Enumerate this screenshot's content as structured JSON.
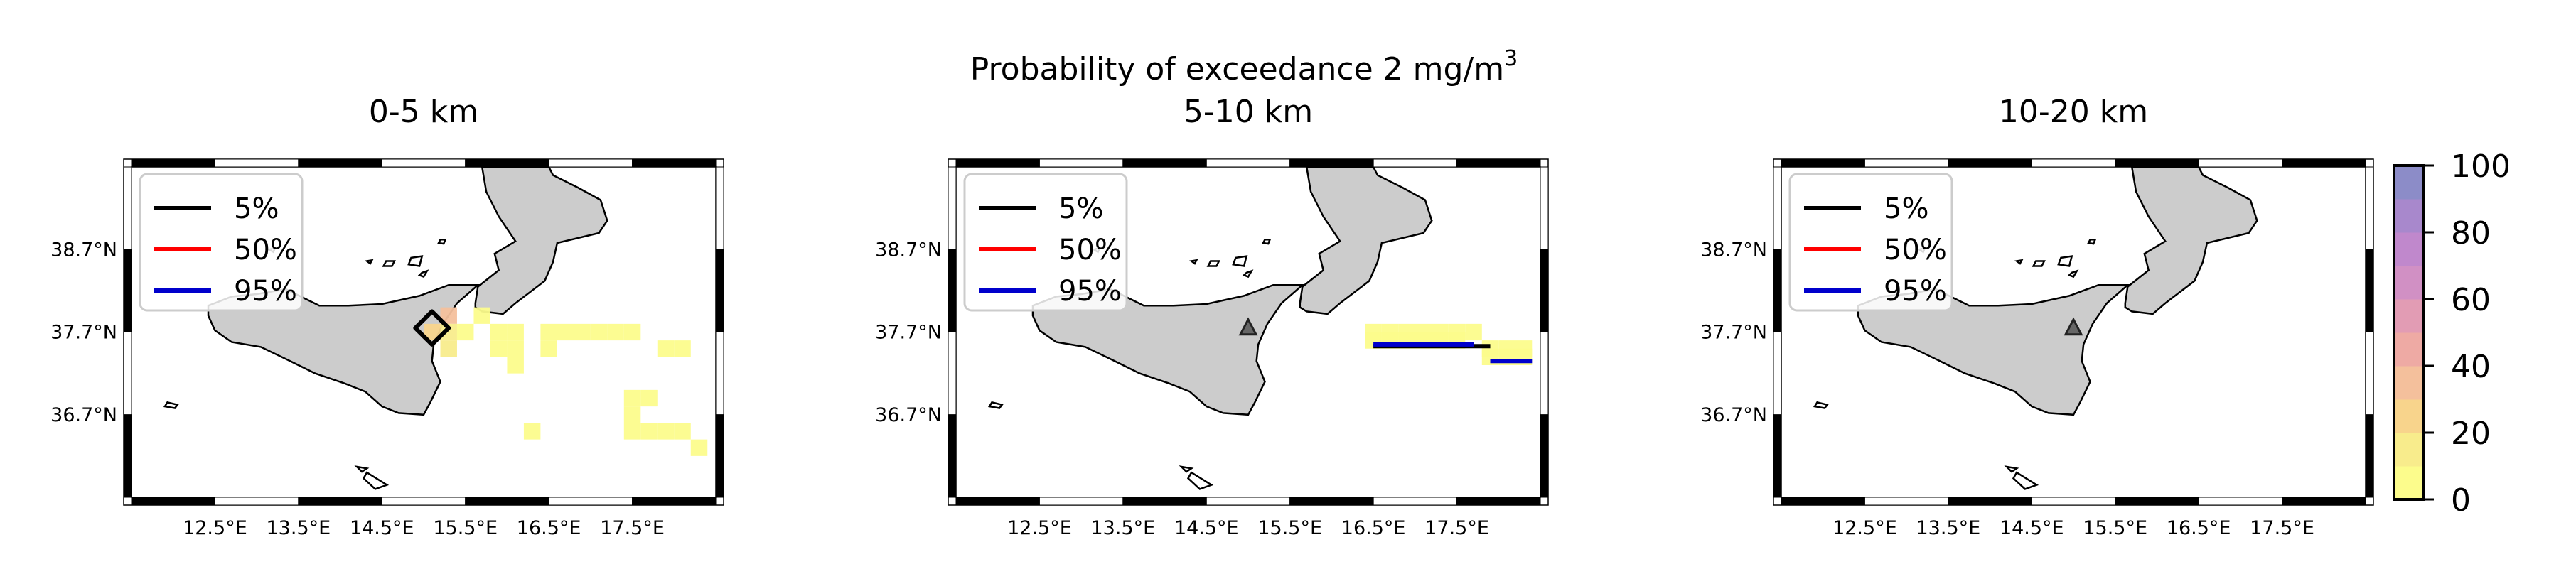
{
  "figure": {
    "suptitle_main": "Probability of exceedance 2 mg/m",
    "suptitle_sup": "3"
  },
  "chart_data": [
    {
      "type": "heatmap",
      "title": "0-5 km",
      "xlabel": "",
      "ylabel": "",
      "xlim": [
        11.5,
        18.5
      ],
      "ylim": [
        35.7,
        39.7
      ],
      "x_ticks": [
        "12.5°E",
        "13.5°E",
        "14.5°E",
        "15.5°E",
        "16.5°E",
        "17.5°E"
      ],
      "x_tick_values": [
        12.5,
        13.5,
        14.5,
        15.5,
        16.5,
        17.5
      ],
      "y_ticks": [
        "38.7°N",
        "37.7°N",
        "36.7°N"
      ],
      "y_tick_values": [
        38.7,
        37.7,
        36.7
      ],
      "legend": {
        "position": "top-left",
        "entries": [
          "5%",
          "50%",
          "95%"
        ]
      },
      "cells_pct": [
        {
          "lon": 15.3,
          "lat": 37.9,
          "p": 30
        },
        {
          "lon": 15.1,
          "lat": 37.7,
          "p": 25
        },
        {
          "lon": 15.3,
          "lat": 37.7,
          "p": 15
        },
        {
          "lon": 15.5,
          "lat": 37.7,
          "p": 8
        },
        {
          "lon": 15.3,
          "lat": 37.5,
          "p": 10
        },
        {
          "lon": 15.7,
          "lat": 37.9,
          "p": 3
        },
        {
          "lon": 15.9,
          "lat": 37.7,
          "p": 3
        },
        {
          "lon": 16.1,
          "lat": 37.7,
          "p": 3
        },
        {
          "lon": 16.5,
          "lat": 37.7,
          "p": 3
        },
        {
          "lon": 16.7,
          "lat": 37.7,
          "p": 3
        },
        {
          "lon": 16.9,
          "lat": 37.7,
          "p": 3
        },
        {
          "lon": 17.1,
          "lat": 37.7,
          "p": 3
        },
        {
          "lon": 17.3,
          "lat": 37.7,
          "p": 3
        },
        {
          "lon": 17.5,
          "lat": 37.7,
          "p": 3
        },
        {
          "lon": 15.9,
          "lat": 37.5,
          "p": 3
        },
        {
          "lon": 16.1,
          "lat": 37.5,
          "p": 3
        },
        {
          "lon": 16.5,
          "lat": 37.5,
          "p": 3
        },
        {
          "lon": 17.9,
          "lat": 37.5,
          "p": 3
        },
        {
          "lon": 18.1,
          "lat": 37.5,
          "p": 3
        },
        {
          "lon": 16.1,
          "lat": 37.3,
          "p": 3
        },
        {
          "lon": 17.5,
          "lat": 36.9,
          "p": 3
        },
        {
          "lon": 17.7,
          "lat": 36.9,
          "p": 3
        },
        {
          "lon": 17.5,
          "lat": 36.7,
          "p": 3
        },
        {
          "lon": 16.3,
          "lat": 36.5,
          "p": 3
        },
        {
          "lon": 17.5,
          "lat": 36.5,
          "p": 3
        },
        {
          "lon": 17.7,
          "lat": 36.5,
          "p": 3
        },
        {
          "lon": 17.9,
          "lat": 36.5,
          "p": 3
        },
        {
          "lon": 18.1,
          "lat": 36.5,
          "p": 3
        },
        {
          "lon": 18.3,
          "lat": 36.3,
          "p": 3
        }
      ],
      "contours": [
        {
          "level": "5%",
          "color": "#000000",
          "path": [
            [
              15.1,
              37.95
            ],
            [
              15.3,
              37.75
            ],
            [
              15.1,
              37.55
            ],
            [
              14.9,
              37.75
            ]
          ]
        }
      ],
      "volcano": null
    },
    {
      "type": "heatmap",
      "title": "5-10 km",
      "xlabel": "",
      "ylabel": "",
      "xlim": [
        11.5,
        18.5
      ],
      "ylim": [
        35.7,
        39.7
      ],
      "x_ticks": [
        "12.5°E",
        "13.5°E",
        "14.5°E",
        "15.5°E",
        "16.5°E",
        "17.5°E"
      ],
      "x_tick_values": [
        12.5,
        13.5,
        14.5,
        15.5,
        16.5,
        17.5
      ],
      "y_ticks": [
        "38.7°N",
        "37.7°N",
        "36.7°N"
      ],
      "y_tick_values": [
        38.7,
        37.7,
        36.7
      ],
      "legend": {
        "position": "top-left",
        "entries": [
          "5%",
          "50%",
          "95%"
        ]
      },
      "cells_pct": [
        {
          "lon": 16.5,
          "lat": 37.7,
          "p": 3
        },
        {
          "lon": 16.7,
          "lat": 37.7,
          "p": 3
        },
        {
          "lon": 16.9,
          "lat": 37.7,
          "p": 3
        },
        {
          "lon": 17.1,
          "lat": 37.7,
          "p": 3
        },
        {
          "lon": 17.3,
          "lat": 37.7,
          "p": 3
        },
        {
          "lon": 17.5,
          "lat": 37.7,
          "p": 3
        },
        {
          "lon": 17.7,
          "lat": 37.7,
          "p": 3
        },
        {
          "lon": 16.5,
          "lat": 37.6,
          "p": 3
        },
        {
          "lon": 16.7,
          "lat": 37.6,
          "p": 3
        },
        {
          "lon": 16.9,
          "lat": 37.6,
          "p": 3
        },
        {
          "lon": 17.1,
          "lat": 37.6,
          "p": 3
        },
        {
          "lon": 17.3,
          "lat": 37.6,
          "p": 3
        },
        {
          "lon": 17.5,
          "lat": 37.6,
          "p": 3
        },
        {
          "lon": 17.9,
          "lat": 37.5,
          "p": 3
        },
        {
          "lon": 18.1,
          "lat": 37.5,
          "p": 3
        },
        {
          "lon": 18.3,
          "lat": 37.5,
          "p": 3
        },
        {
          "lon": 17.9,
          "lat": 37.4,
          "p": 3
        },
        {
          "lon": 18.1,
          "lat": 37.4,
          "p": 3
        },
        {
          "lon": 18.3,
          "lat": 37.4,
          "p": 3
        }
      ],
      "contours": [
        {
          "level": "5%",
          "color": "#000000",
          "path": [
            [
              16.5,
              37.53
            ],
            [
              17.9,
              37.53
            ]
          ]
        },
        {
          "level": "95%",
          "color": "#0000cc",
          "path": [
            [
              16.5,
              37.55
            ],
            [
              17.7,
              37.55
            ]
          ]
        },
        {
          "level": "95%",
          "color": "#0000cc",
          "path": [
            [
              17.9,
              37.35
            ],
            [
              18.4,
              37.35
            ]
          ]
        }
      ],
      "volcano": {
        "lon": 15.0,
        "lat": 37.75
      }
    },
    {
      "type": "heatmap",
      "title": "10-20 km",
      "xlabel": "",
      "ylabel": "",
      "xlim": [
        11.5,
        18.5
      ],
      "ylim": [
        35.7,
        39.7
      ],
      "x_ticks": [
        "12.5°E",
        "13.5°E",
        "14.5°E",
        "15.5°E",
        "16.5°E",
        "17.5°E"
      ],
      "x_tick_values": [
        12.5,
        13.5,
        14.5,
        15.5,
        16.5,
        17.5
      ],
      "y_ticks": [
        "38.7°N",
        "37.7°N",
        "36.7°N"
      ],
      "y_tick_values": [
        38.7,
        37.7,
        36.7
      ],
      "legend": {
        "position": "top-left",
        "entries": [
          "5%",
          "50%",
          "95%"
        ]
      },
      "cells_pct": [],
      "contours": [],
      "volcano": {
        "lon": 15.0,
        "lat": 37.75
      }
    }
  ],
  "colorbar": {
    "range": [
      0,
      100
    ],
    "ticks": [
      "0",
      "20",
      "40",
      "60",
      "80",
      "100"
    ],
    "tick_values": [
      0,
      20,
      40,
      60,
      80,
      100
    ],
    "colors": [
      "#fcfc8c",
      "#f8ec8c",
      "#f8d48c",
      "#f4c09c",
      "#eeaaa4",
      "#e29cb4",
      "#d190c4",
      "#c088cc",
      "#a888cc",
      "#8c8cc8"
    ]
  },
  "legend_colors": {
    "5%": "#000000",
    "50%": "#ff0000",
    "95%": "#0000cc"
  },
  "land_color": "#cccccc",
  "volcano_marker": "triangle-icon"
}
